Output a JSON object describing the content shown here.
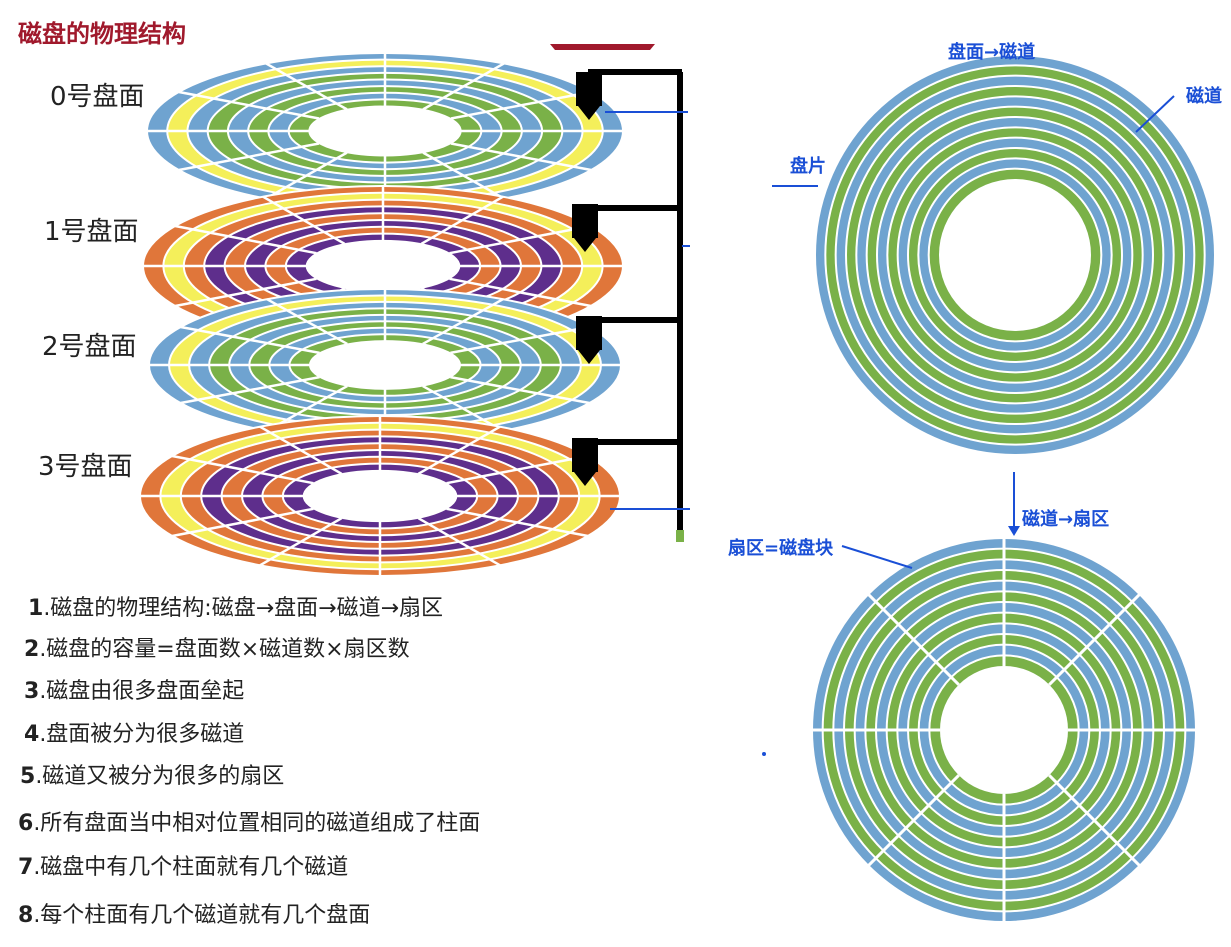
{
  "title": "磁盘的物理结构",
  "platters": [
    {
      "label": "0号盘面",
      "scheme": "blue-green"
    },
    {
      "label": "1号盘面",
      "scheme": "orange-purple"
    },
    {
      "label": "2号盘面",
      "scheme": "blue-green"
    },
    {
      "label": "3号盘面",
      "scheme": "orange-purple"
    }
  ],
  "notes": [
    {
      "num": "1",
      "text": ".磁盘的物理结构:磁盘→盘面→磁道→扇区"
    },
    {
      "num": "2",
      "text": ".磁盘的容量=盘面数×磁道数×扇区数"
    },
    {
      "num": "3",
      "text": ".磁盘由很多盘面垒起"
    },
    {
      "num": "4",
      "text": ".盘面被分为很多磁道"
    },
    {
      "num": "5",
      "text": ".磁道又被分为很多的扇区"
    },
    {
      "num": "6",
      "text": ".所有盘面当中相对位置相同的磁道组成了柱面"
    },
    {
      "num": "7",
      "text": ".磁盘中有几个柱面就有几个磁道"
    },
    {
      "num": "8",
      "text": ".每个柱面有几个磁道就有几个盘面"
    }
  ],
  "track_diagram": {
    "top_label": "盘面→磁道",
    "platter_label": "盘片",
    "track_label": "磁道"
  },
  "sector_diagram": {
    "arrow_label": "磁道→扇区",
    "sector_label": "扇区=磁盘块"
  },
  "colors": {
    "title": "#a0192c",
    "annotation_blue": "#1a4fd6",
    "track_blue": "#6fa3d0",
    "track_green": "#7ab148",
    "platter_yellow": "#f4ef5a",
    "platter_orange": "#e0763a",
    "platter_purple": "#5e2e8c",
    "arm_black": "#000000"
  }
}
